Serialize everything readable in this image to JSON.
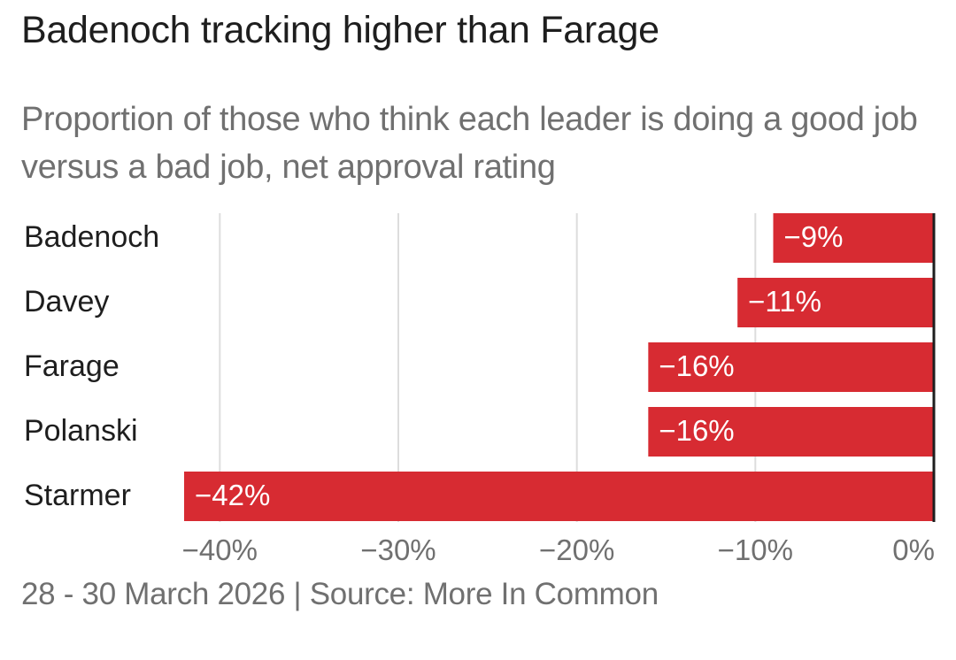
{
  "title": "Badenoch tracking higher than Farage",
  "subtitle": "Proportion of those who think each leader is doing a good job versus a bad job, net approval rating",
  "source": "28 - 30 March 2026 | Source: More In Common",
  "colors": {
    "bar": "#d72b32",
    "grid": "#dddddd",
    "axis": "#1e1e1e",
    "label": "#1e1e1e",
    "tick": "#707070",
    "bar_text": "#ffffff"
  },
  "chart_data": {
    "type": "bar",
    "orientation": "horizontal",
    "categories": [
      "Badenoch",
      "Davey",
      "Farage",
      "Polanski",
      "Starmer"
    ],
    "values": [
      -9,
      -11,
      -16,
      -16,
      -42
    ],
    "data_labels": [
      "−9%",
      "−11%",
      "−16%",
      "−16%",
      "−42%"
    ],
    "xlim": [
      -42,
      0
    ],
    "ticks": [
      -40,
      -30,
      -20,
      -10,
      0
    ],
    "tick_labels": [
      "−40%",
      "−30%",
      "−20%",
      "−10%",
      "0%"
    ],
    "grid": true
  }
}
